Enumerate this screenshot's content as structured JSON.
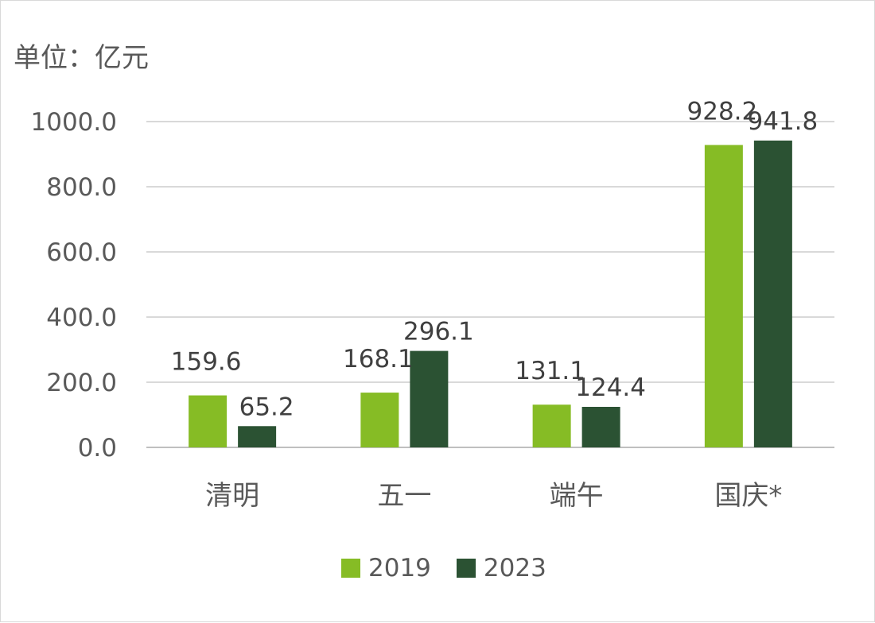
{
  "unit_label": "单位：亿元",
  "chart_data": {
    "type": "bar",
    "categories": [
      "清明",
      "五一",
      "端午",
      "国庆*"
    ],
    "series": [
      {
        "name": "2019",
        "values": [
          159.6,
          168.1,
          131.1,
          928.2
        ],
        "labels": [
          "159.6",
          "168.1",
          "131.1",
          "928.2"
        ],
        "color": "#86bc25"
      },
      {
        "name": "2023",
        "values": [
          65.2,
          296.1,
          124.4,
          941.8
        ],
        "labels": [
          "65.2",
          "296.1",
          "124.4",
          "941.8"
        ],
        "color": "#2b5233"
      }
    ],
    "yticks": [
      "0.0",
      "200.0",
      "400.0",
      "600.0",
      "800.0",
      "1000.0"
    ],
    "ytick_values": [
      0,
      200,
      400,
      600,
      800,
      1000
    ],
    "ylim": [
      0,
      1000
    ],
    "grid": true,
    "legend_position": "bottom"
  }
}
